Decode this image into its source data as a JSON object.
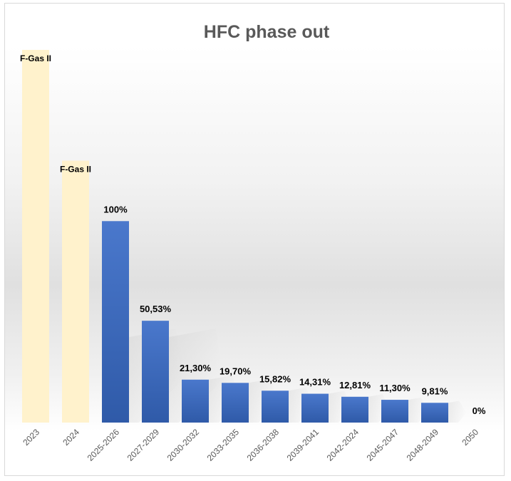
{
  "chart_data": {
    "type": "bar",
    "title": "HFC phase out",
    "categories": [
      "2023",
      "2024",
      "2025-2026",
      "2027-2029",
      "2030-2032",
      "2033-2035",
      "2036-2038",
      "2039-2041",
      "2042-2024",
      "2045-2047",
      "2048-2049",
      "2050"
    ],
    "values": [
      null,
      null,
      100,
      50.53,
      21.3,
      19.7,
      15.82,
      14.31,
      12.81,
      11.3,
      9.81,
      0
    ],
    "data_labels": [
      "",
      "",
      "100%",
      "50,53%",
      "21,30%",
      "19,70%",
      "15,82%",
      "14,31%",
      "12,81%",
      "11,30%",
      "9,81%",
      "0%"
    ],
    "reference_bars": [
      {
        "category": "2023",
        "label": "F-Gas II",
        "value": 185
      },
      {
        "category": "2024",
        "label": "F-Gas II",
        "value": 130
      }
    ],
    "ylim": [
      0,
      185
    ],
    "grid": false,
    "legend": "none",
    "xlabel": "",
    "ylabel": "",
    "colors": {
      "main_bar_top": "#4a78cc",
      "main_bar_bottom": "#2f5aa8",
      "reference_bar": "#fff2cc",
      "label_text": "#000000",
      "title_text": "#595959",
      "tick_text": "#595959",
      "background_band": "#e4e4e4"
    }
  }
}
